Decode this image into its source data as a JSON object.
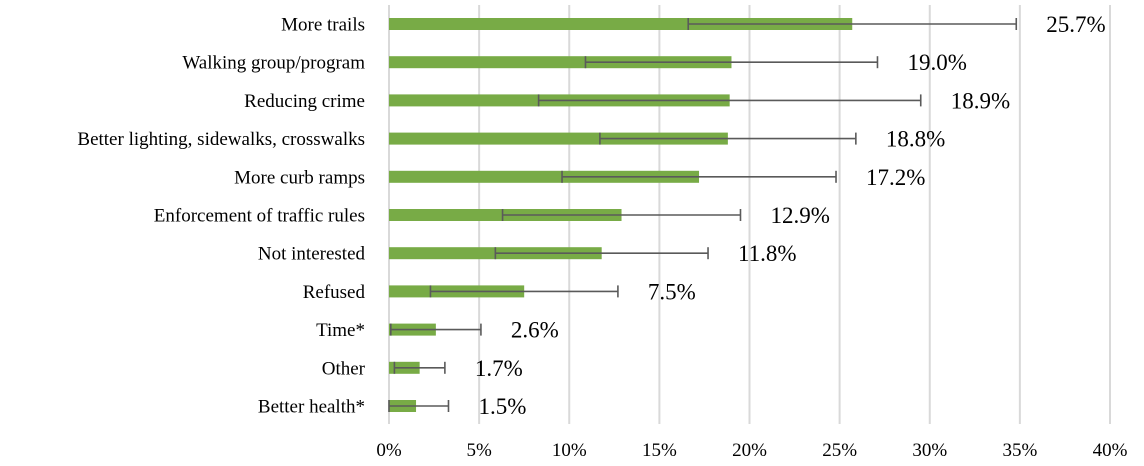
{
  "chart_data": {
    "type": "bar",
    "orientation": "horizontal",
    "title": "",
    "xlabel": "",
    "ylabel": "",
    "xlim": [
      0,
      40
    ],
    "x_ticks": [
      0,
      5,
      10,
      15,
      20,
      25,
      30,
      35,
      40
    ],
    "x_tick_labels": [
      "0%",
      "5%",
      "10%",
      "15%",
      "20%",
      "25%",
      "30%",
      "35%",
      "40%"
    ],
    "grid": "vertical gridlines on",
    "legend": "none",
    "bar_color": "#78ab46",
    "error_bar_color": "#5a5a5a",
    "categories": [
      "More trails",
      "Walking group/program",
      "Reducing crime",
      "Better lighting, sidewalks, crosswalks",
      "More curb ramps",
      "Enforcement of traffic rules",
      "Not interested",
      "Refused",
      "Time*",
      "Other",
      "Better health*"
    ],
    "values": [
      25.7,
      19.0,
      18.9,
      18.8,
      17.2,
      12.9,
      11.8,
      7.5,
      2.6,
      1.7,
      1.5
    ],
    "value_labels": [
      "25.7%",
      "19.0%",
      "18.9%",
      "18.8%",
      "17.2%",
      "12.9%",
      "11.8%",
      "7.5%",
      "2.6%",
      "1.7%",
      "1.5%"
    ],
    "error_low": [
      16.6,
      10.9,
      8.3,
      11.7,
      9.6,
      6.3,
      5.9,
      2.3,
      0.1,
      0.3,
      0.0
    ],
    "error_high": [
      34.8,
      27.1,
      29.5,
      25.9,
      24.8,
      19.5,
      17.7,
      12.7,
      5.1,
      3.1,
      3.3
    ]
  }
}
